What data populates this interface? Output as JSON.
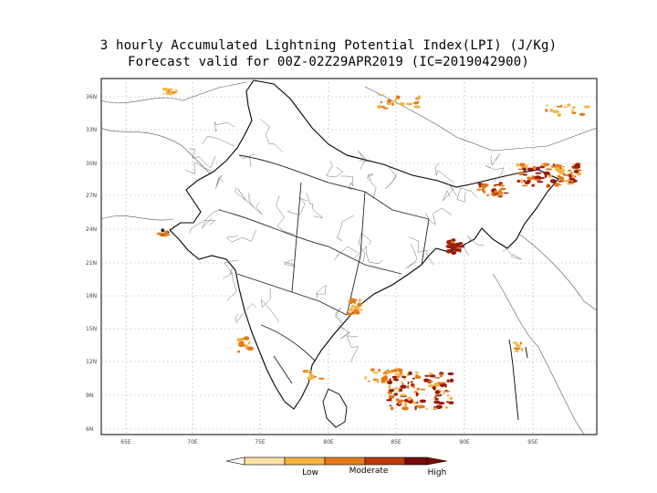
{
  "title_line1": "3 hourly Accumulated Lightning Potential Index(LPI) (J/Kg)",
  "title_line2": "Forecast valid for 00Z-02Z29APR2019 (IC=2019042900)",
  "axes": {
    "lat_labels": [
      "36N",
      "33N",
      "30N",
      "27N",
      "24N",
      "21N",
      "18N",
      "15N",
      "12N",
      "9N",
      "6N"
    ],
    "lon_labels": [
      "65E",
      "70E",
      "75E",
      "80E",
      "85E",
      "90E",
      "95E"
    ]
  },
  "legend": {
    "labels": [
      "Low",
      "Moderate",
      "High"
    ],
    "colors": [
      "#ffffff",
      "#ffe2a6",
      "#f6b342",
      "#e37a19",
      "#b83a08",
      "#7a0a05"
    ]
  },
  "colors": {
    "lpi_low": "#f6b342",
    "lpi_mid": "#e37a19",
    "lpi_high": "#9c1a08"
  }
}
